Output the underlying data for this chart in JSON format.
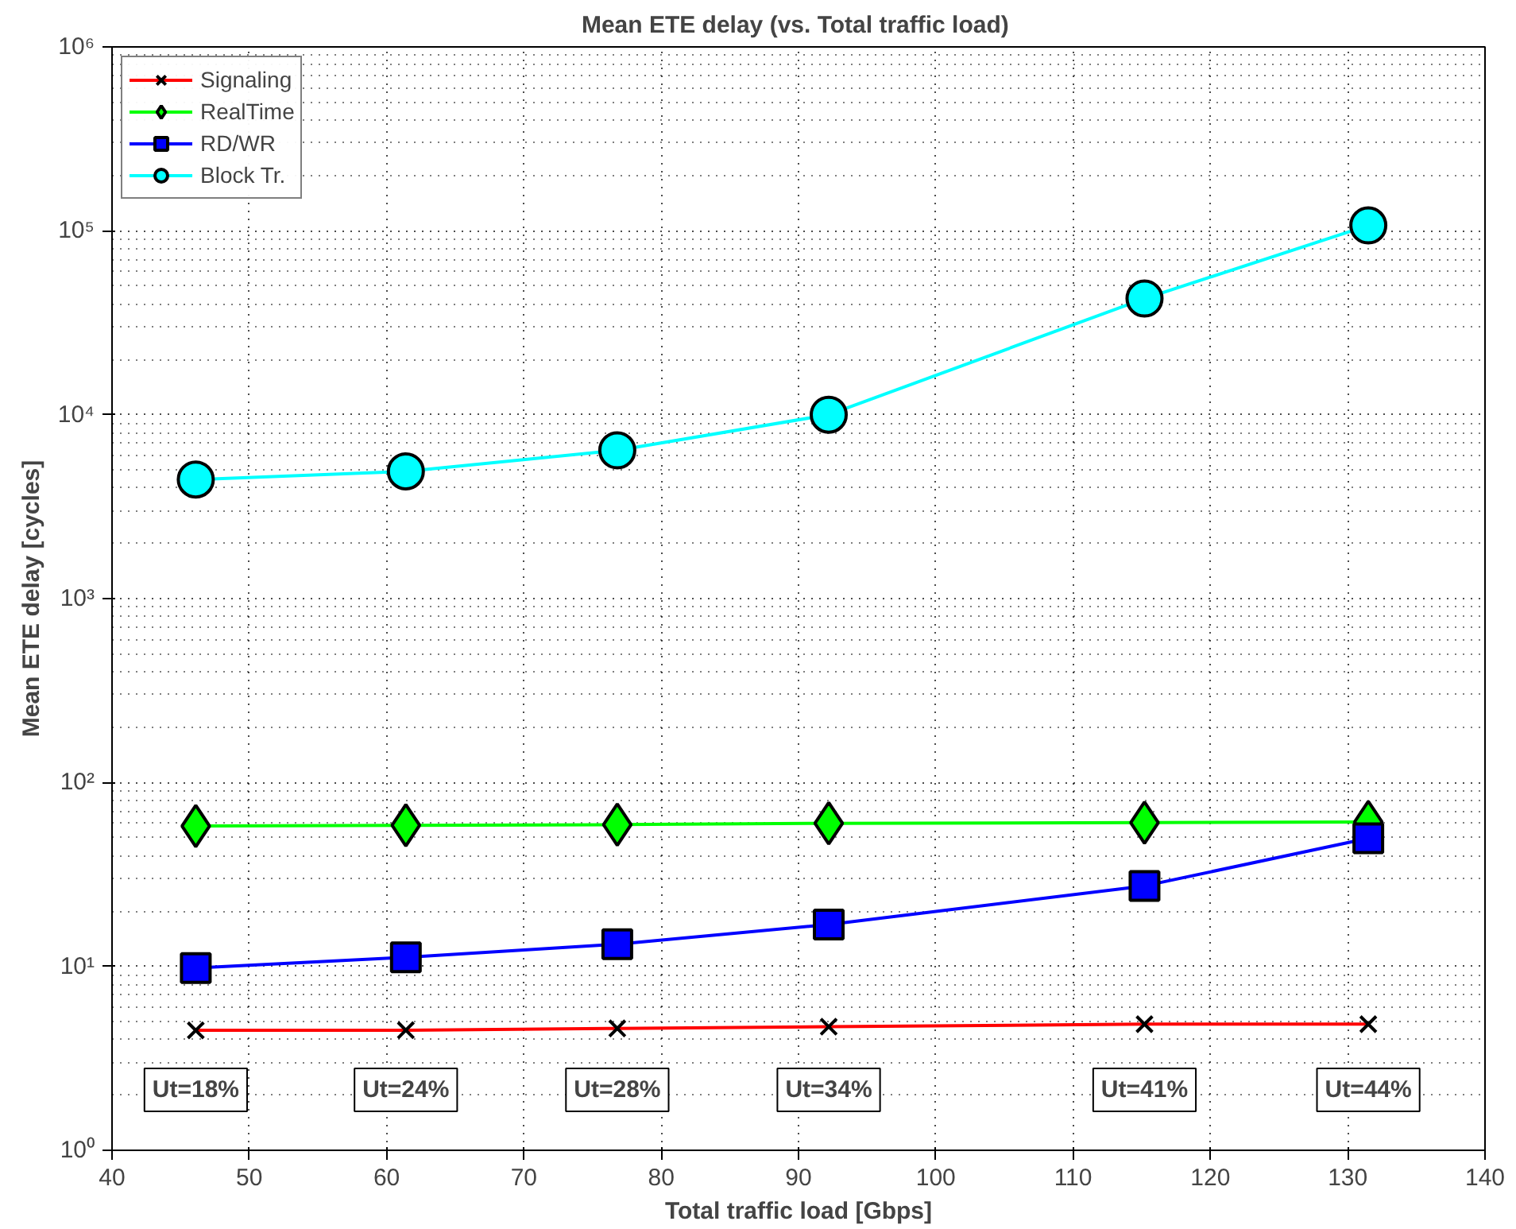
{
  "chart_data": {
    "type": "line",
    "title": "Mean ETE delay  (vs. Total traffic load)",
    "xlabel": "Total traffic load [Gbps]",
    "ylabel": "Mean ETE delay [cycles]",
    "x": [
      46.1,
      61.4,
      76.8,
      92.2,
      115.2,
      131.5
    ],
    "series": [
      {
        "name": "Signaling",
        "color": "#ff0000",
        "marker": "cross",
        "values": [
          4.49,
          4.5,
          4.6,
          4.7,
          4.85,
          4.85
        ]
      },
      {
        "name": "RealTime",
        "color": "#00ff00",
        "marker": "diamond",
        "values": [
          58,
          58.5,
          59,
          60,
          60.5,
          61
        ]
      },
      {
        "name": "RD/WR",
        "color": "#0000ff",
        "marker": "square",
        "values": [
          9.8,
          11.2,
          13.2,
          16.9,
          27.4,
          49.7
        ]
      },
      {
        "name": "Block Tr.",
        "color": "#00ffff",
        "marker": "circle",
        "values": [
          4440,
          4920,
          6400,
          10000,
          42800,
          107000
        ]
      }
    ],
    "log": true,
    "grid": true,
    "legend": "top left",
    "xlim": [
      40,
      140
    ],
    "xticks": [
      40,
      50,
      60,
      70,
      80,
      90,
      100,
      110,
      120,
      130,
      140
    ],
    "ylim": [
      1,
      1000000
    ],
    "yticks": [
      {
        "value": 1,
        "label": "10⁰"
      },
      {
        "value": 10,
        "label": "10¹"
      },
      {
        "value": 100,
        "label": "10²"
      },
      {
        "value": 1000,
        "label": "10³"
      },
      {
        "value": 10000,
        "label": "10⁴"
      },
      {
        "value": 100000,
        "label": "10⁵"
      },
      {
        "value": 1000000,
        "label": "10⁶"
      }
    ],
    "annotations": [
      "Ut=18%",
      "Ut=24%",
      "Ut=28%",
      "Ut=34%",
      "Ut=41%",
      "Ut=44%"
    ]
  }
}
